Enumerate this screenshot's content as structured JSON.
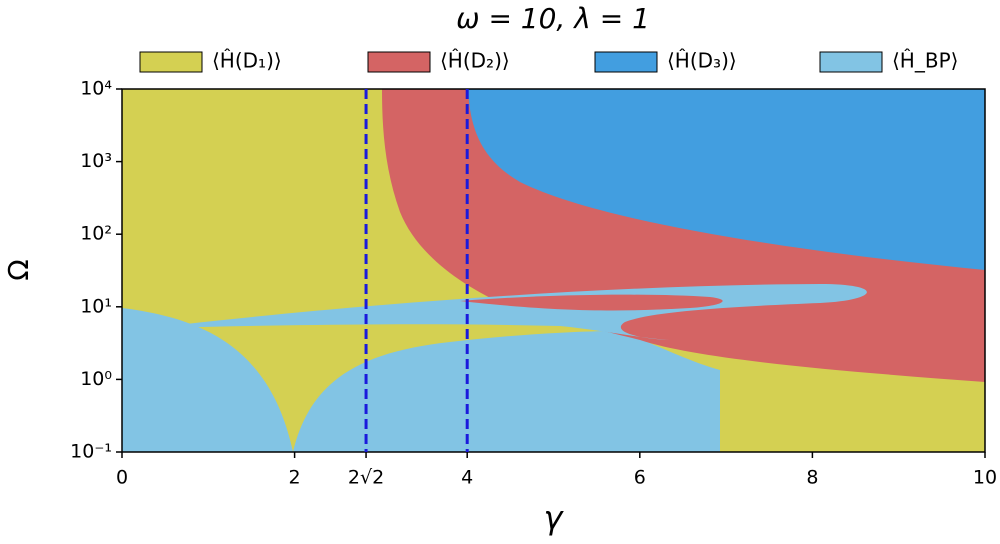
{
  "chart_data": {
    "type": "region",
    "title": "ω = 10,  λ = 1",
    "x_label": "γ",
    "y_label": "Ω",
    "series": [
      {
        "name": "⟨Ĥ(D₁)⟩",
        "color": "#d4d052"
      },
      {
        "name": "⟨Ĥ(D₂)⟩",
        "color": "#d46464"
      },
      {
        "name": "⟨Ĥ(D₃)⟩",
        "color": "#429ee0"
      },
      {
        "name": "⟨Ĥ_BP⟩",
        "color": "#82c4e4"
      }
    ],
    "xlim": [
      0,
      10
    ],
    "xticks": [
      0,
      2,
      {
        "value": 2.828,
        "label": "2√2"
      },
      4,
      6,
      8,
      10
    ],
    "ylim": [
      0.1,
      10000
    ],
    "log_y": true,
    "yticks": [
      {
        "value": 0.1,
        "label": "10⁻¹"
      },
      {
        "value": 1,
        "label": "10⁰"
      },
      {
        "value": 10,
        "label": "10¹"
      },
      {
        "value": 100,
        "label": "10²"
      },
      {
        "value": 1000,
        "label": "10³"
      },
      {
        "value": 10000,
        "label": "10⁴"
      }
    ],
    "vlines": [
      2.828,
      4
    ],
    "vline_color": "#1a1adc"
  }
}
